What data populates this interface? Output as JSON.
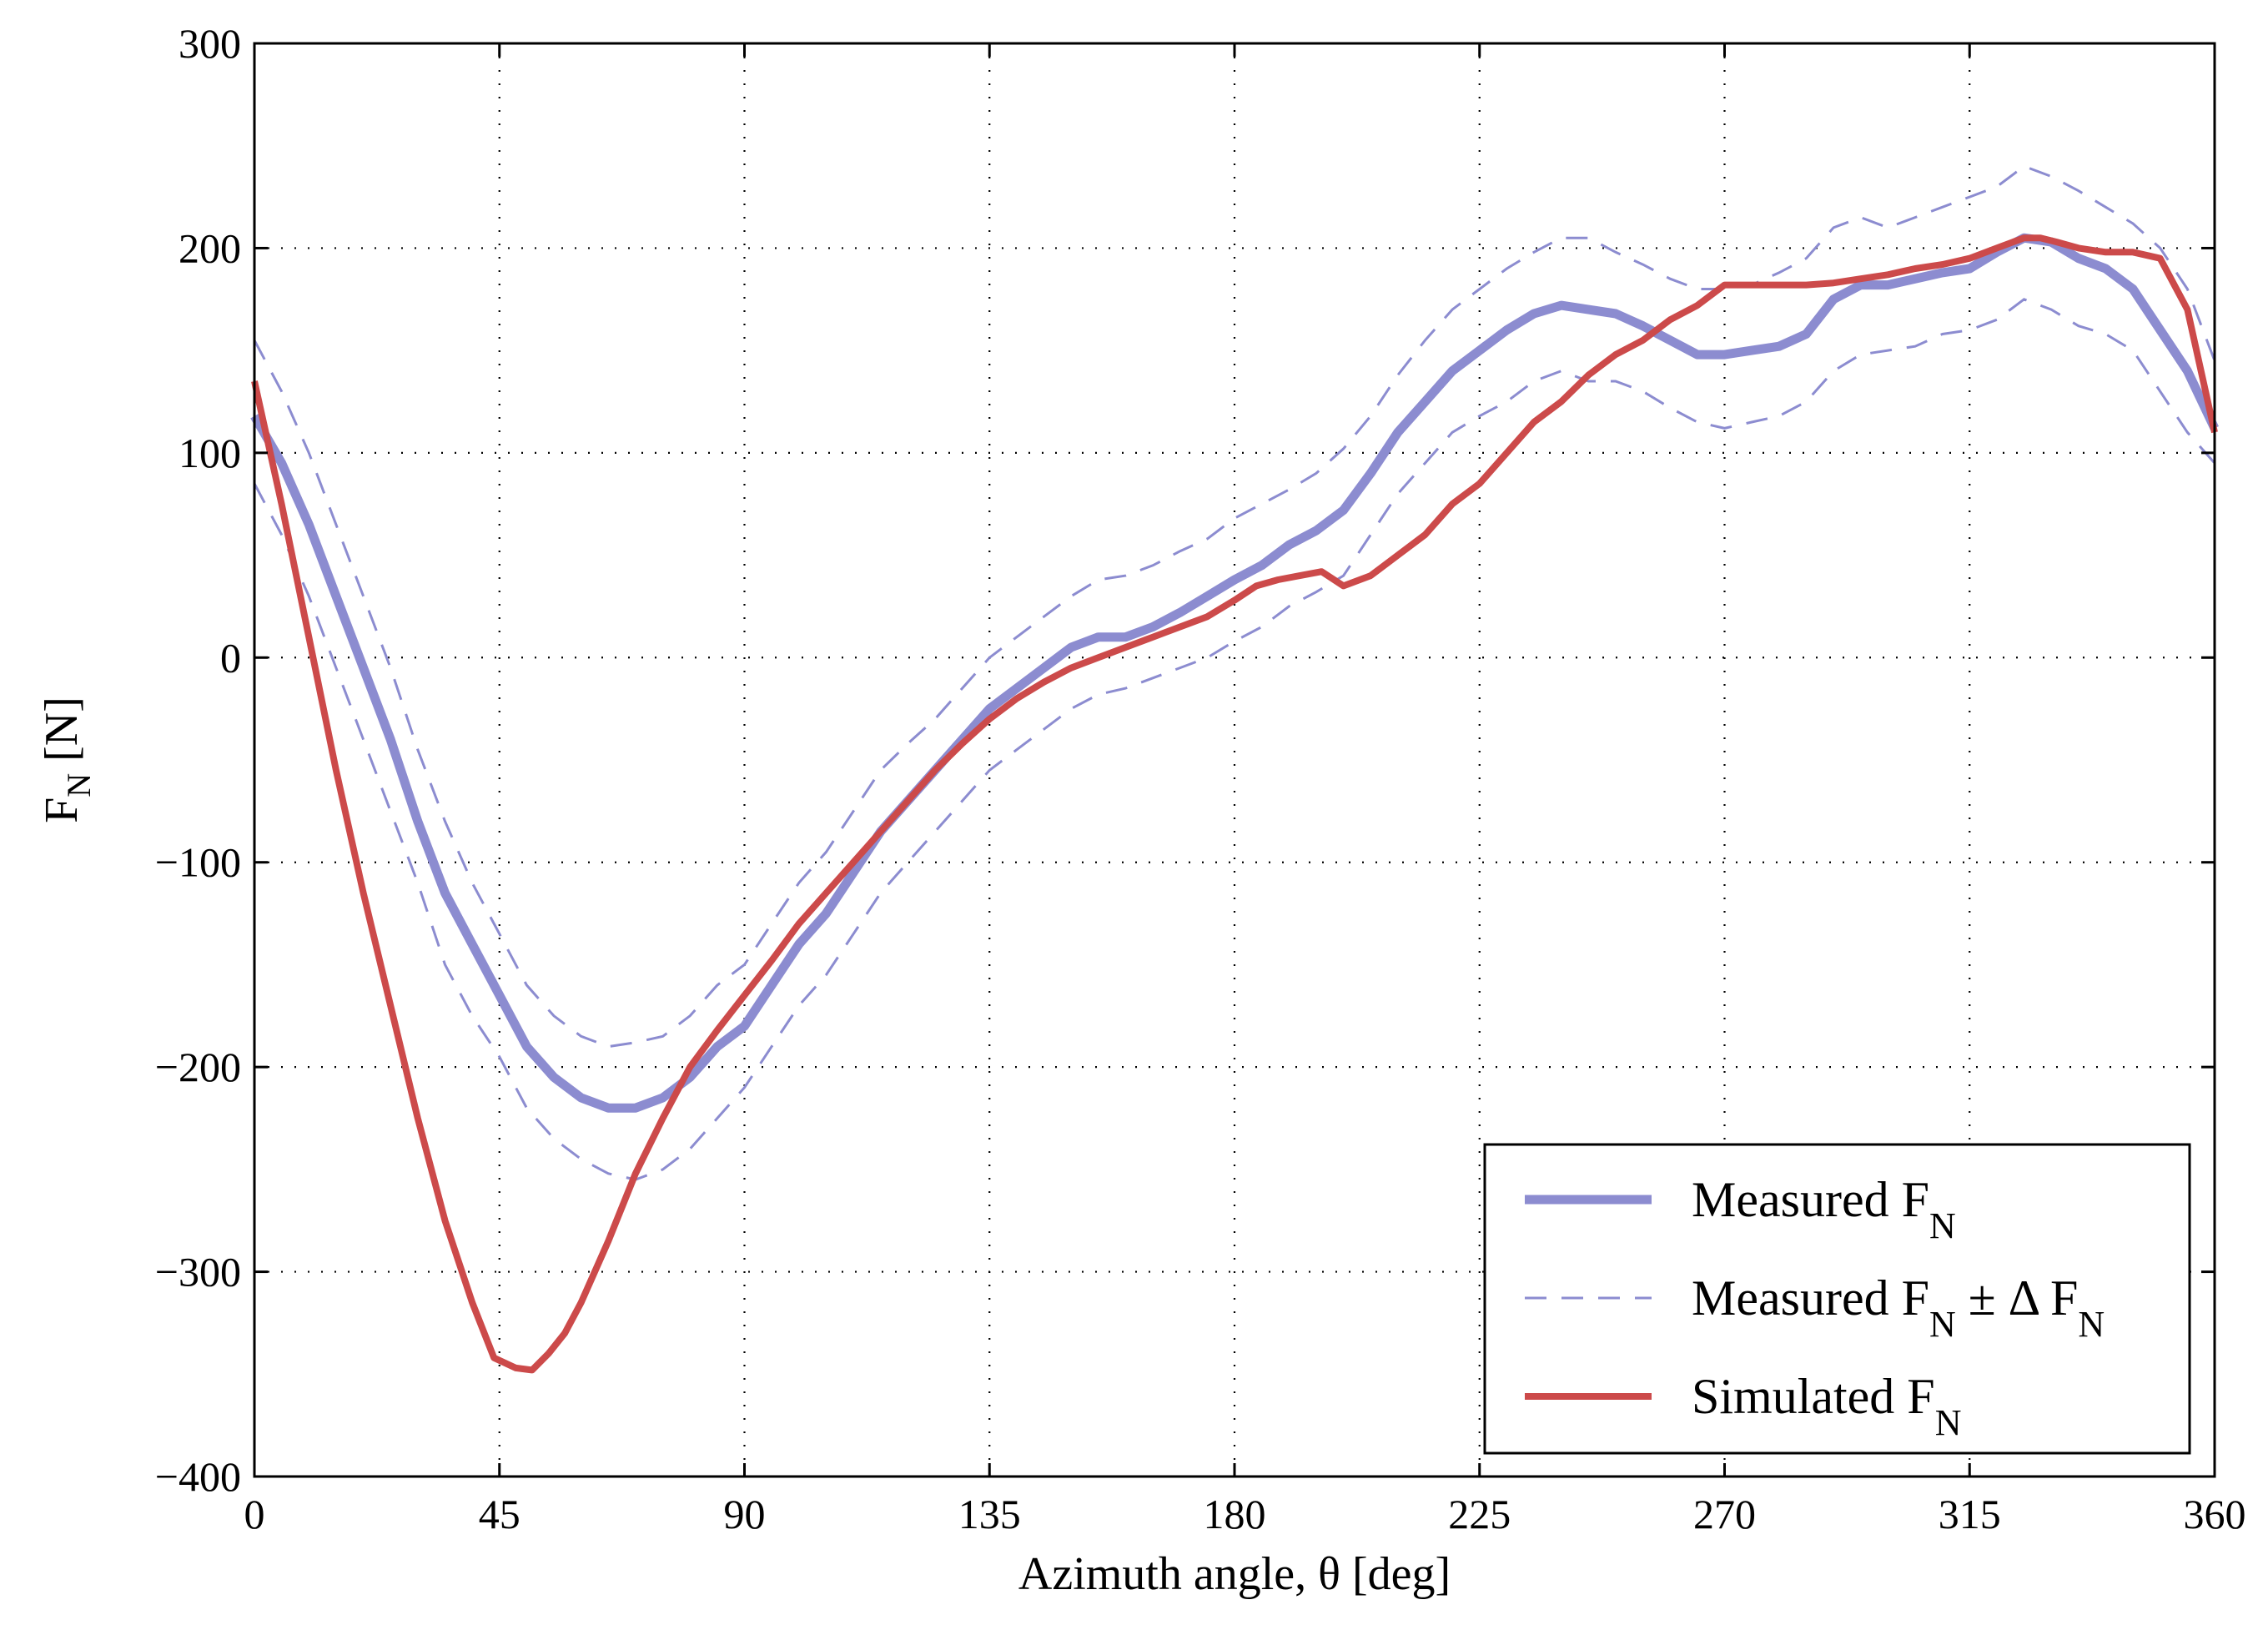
{
  "chart_data": {
    "type": "line",
    "xlabel": "Azimuth angle, θ [deg]",
    "ylabel_main": "F",
    "ylabel_sub": "N",
    "ylabel_unit": " [N]",
    "xlim": [
      0,
      360
    ],
    "ylim": [
      -400,
      300
    ],
    "xticks": [
      0,
      45,
      90,
      135,
      180,
      225,
      270,
      315,
      360
    ],
    "yticks": [
      300,
      200,
      100,
      0,
      -100,
      -200,
      -300,
      -400
    ],
    "xtick_labels": [
      "0",
      "45",
      "90",
      "135",
      "180",
      "225",
      "270",
      "315",
      "360"
    ],
    "ytick_labels": [
      "300",
      "200",
      "100",
      "0",
      "−100",
      "−200",
      "−300",
      "−400"
    ],
    "grid": true,
    "legend_position": "bottom-right",
    "colors": {
      "measured": "#8c8cd0",
      "band": "#8c8cd0",
      "simulated": "#cc4a4a"
    },
    "legend": [
      {
        "key": "measured",
        "text": "Measured F",
        "sub": "N",
        "suffix": ""
      },
      {
        "key": "band",
        "text": "Measured F",
        "sub": "N",
        "suffix": " ± Δ F",
        "sub2": "N"
      },
      {
        "key": "simulated",
        "text": "Simulated F",
        "sub": "N",
        "suffix": ""
      }
    ],
    "series": {
      "measured": {
        "x": [
          0,
          5,
          10,
          15,
          20,
          25,
          30,
          35,
          40,
          45,
          50,
          55,
          60,
          65,
          70,
          75,
          80,
          85,
          90,
          95,
          100,
          105,
          110,
          115,
          120,
          125,
          130,
          135,
          140,
          145,
          150,
          155,
          160,
          165,
          170,
          175,
          180,
          185,
          190,
          195,
          200,
          205,
          210,
          215,
          220,
          225,
          230,
          235,
          240,
          245,
          250,
          255,
          260,
          265,
          270,
          275,
          280,
          285,
          290,
          295,
          300,
          305,
          310,
          315,
          320,
          325,
          330,
          335,
          340,
          345,
          350,
          355,
          360
        ],
        "y": [
          118,
          95,
          65,
          30,
          -5,
          -40,
          -80,
          -115,
          -140,
          -165,
          -190,
          -205,
          -215,
          -220,
          -220,
          -215,
          -205,
          -190,
          -180,
          -160,
          -140,
          -125,
          -105,
          -85,
          -70,
          -55,
          -40,
          -25,
          -15,
          -5,
          5,
          10,
          10,
          15,
          22,
          30,
          38,
          45,
          55,
          62,
          72,
          90,
          110,
          125,
          140,
          150,
          160,
          168,
          172,
          170,
          168,
          162,
          155,
          148,
          148,
          150,
          152,
          158,
          175,
          182,
          182,
          185,
          188,
          190,
          198,
          205,
          203,
          195,
          190,
          180,
          160,
          140,
          112
        ]
      },
      "upper": {
        "x": [
          0,
          5,
          10,
          15,
          20,
          25,
          30,
          35,
          40,
          45,
          50,
          55,
          60,
          65,
          70,
          75,
          80,
          85,
          90,
          95,
          100,
          105,
          110,
          115,
          120,
          125,
          130,
          135,
          140,
          145,
          150,
          155,
          160,
          165,
          170,
          175,
          180,
          185,
          190,
          195,
          200,
          205,
          210,
          215,
          220,
          225,
          230,
          235,
          240,
          245,
          250,
          255,
          260,
          265,
          270,
          275,
          280,
          285,
          290,
          295,
          300,
          305,
          310,
          315,
          320,
          325,
          330,
          335,
          340,
          345,
          350,
          355,
          360
        ],
        "y": [
          155,
          130,
          100,
          65,
          30,
          -5,
          -45,
          -80,
          -110,
          -135,
          -160,
          -175,
          -185,
          -190,
          -188,
          -185,
          -175,
          -160,
          -150,
          -130,
          -110,
          -95,
          -75,
          -55,
          -42,
          -30,
          -15,
          0,
          10,
          20,
          30,
          38,
          40,
          45,
          52,
          58,
          68,
          75,
          82,
          90,
          102,
          118,
          138,
          155,
          170,
          180,
          190,
          198,
          205,
          205,
          198,
          192,
          185,
          180,
          180,
          182,
          188,
          195,
          210,
          215,
          210,
          215,
          220,
          225,
          230,
          240,
          235,
          228,
          220,
          212,
          200,
          180,
          145
        ]
      },
      "lower": {
        "x": [
          0,
          5,
          10,
          15,
          20,
          25,
          30,
          35,
          40,
          45,
          50,
          55,
          60,
          65,
          70,
          75,
          80,
          85,
          90,
          95,
          100,
          105,
          110,
          115,
          120,
          125,
          130,
          135,
          140,
          145,
          150,
          155,
          160,
          165,
          170,
          175,
          180,
          185,
          190,
          195,
          200,
          205,
          210,
          215,
          220,
          225,
          230,
          235,
          240,
          245,
          250,
          255,
          260,
          265,
          270,
          275,
          280,
          285,
          290,
          295,
          300,
          305,
          310,
          315,
          320,
          325,
          330,
          335,
          340,
          345,
          350,
          355,
          360
        ],
        "y": [
          85,
          60,
          30,
          -5,
          -40,
          -75,
          -110,
          -150,
          -175,
          -195,
          -220,
          -235,
          -245,
          -252,
          -255,
          -250,
          -240,
          -225,
          -210,
          -190,
          -170,
          -155,
          -135,
          -115,
          -100,
          -85,
          -70,
          -55,
          -45,
          -35,
          -25,
          -18,
          -15,
          -10,
          -5,
          0,
          8,
          15,
          25,
          32,
          40,
          60,
          80,
          95,
          110,
          118,
          125,
          135,
          140,
          135,
          135,
          130,
          122,
          115,
          112,
          115,
          118,
          125,
          140,
          148,
          150,
          152,
          158,
          160,
          165,
          175,
          170,
          162,
          158,
          150,
          130,
          110,
          95
        ]
      },
      "simulated": {
        "x": [
          0,
          5,
          10,
          15,
          20,
          25,
          30,
          35,
          40,
          44,
          48,
          51,
          54,
          57,
          60,
          65,
          70,
          75,
          80,
          85,
          90,
          95,
          100,
          105,
          110,
          115,
          120,
          125,
          130,
          135,
          140,
          145,
          150,
          155,
          160,
          165,
          170,
          175,
          180,
          184,
          188,
          192,
          196,
          200,
          205,
          210,
          215,
          220,
          225,
          230,
          235,
          240,
          245,
          250,
          255,
          260,
          265,
          270,
          275,
          280,
          285,
          290,
          295,
          300,
          305,
          310,
          315,
          320,
          325,
          328,
          331,
          335,
          340,
          345,
          350,
          355,
          360
        ],
        "y": [
          135,
          75,
          10,
          -55,
          -115,
          -170,
          -225,
          -275,
          -315,
          -342,
          -347,
          -348,
          -340,
          -330,
          -315,
          -285,
          -252,
          -225,
          -200,
          -182,
          -165,
          -148,
          -130,
          -115,
          -100,
          -85,
          -70,
          -55,
          -42,
          -30,
          -20,
          -12,
          -5,
          0,
          5,
          10,
          15,
          20,
          28,
          35,
          38,
          40,
          42,
          35,
          40,
          50,
          60,
          75,
          85,
          100,
          115,
          125,
          138,
          148,
          155,
          165,
          172,
          182,
          182,
          182,
          182,
          183,
          185,
          187,
          190,
          192,
          195,
          200,
          205,
          205,
          203,
          200,
          198,
          198,
          195,
          170,
          110
        ]
      }
    }
  }
}
